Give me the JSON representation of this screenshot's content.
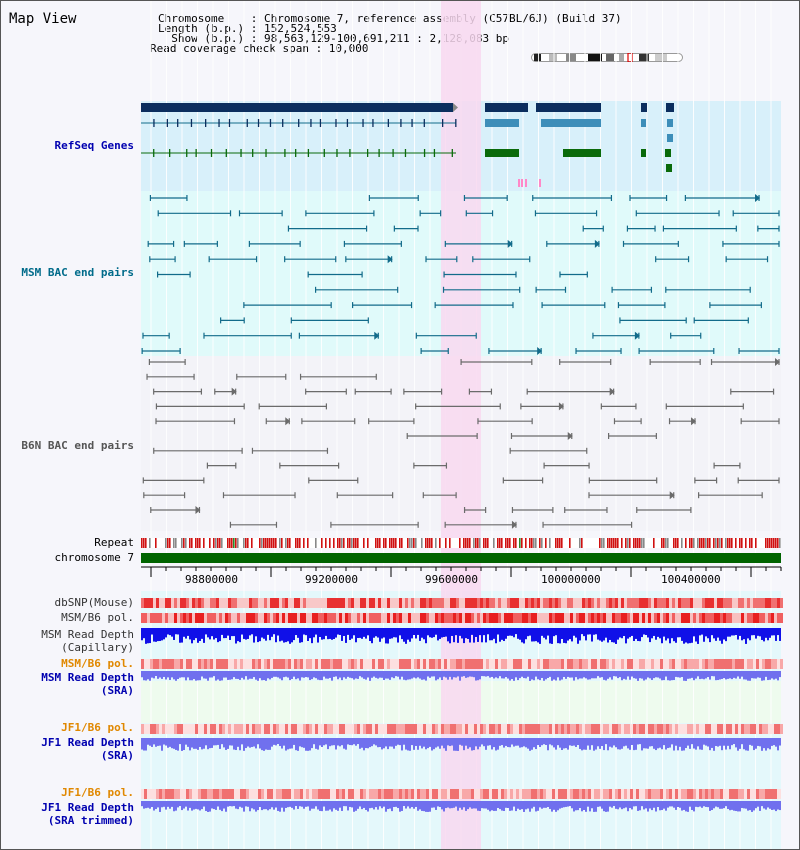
{
  "header": {
    "view_title": "Map View",
    "chromosome_line": "Chromosome    : Chromosome 7, reference assembly (C57BL/6J) (Build 37)",
    "length_line": "Length (b.p.) : 152,524,553",
    "show_line": "  Show (b.p.) : 98,563,129-100,691,211 : 2,128,083 bp",
    "coverage_line": "Read coverage check span : 10,000"
  },
  "colors": {
    "background": "#f6f6fb",
    "refseq_band": "#d8f0fa",
    "bac_band": "#e0fafa",
    "highlight": "#f8d8f0",
    "refseq_dark": "#0b2e5e",
    "refseq_mid": "#3d8eb9",
    "refseq_green": "#0a6a0a",
    "msm_bac": "#126b8a",
    "b6n_bac": "#6b6b6b",
    "repeat_red": "#d01010",
    "chrom_green": "#006400",
    "snp_red": "#ee3b3b",
    "capillary_blue": "#1010e8",
    "sra_blue": "#7070ee",
    "sra_green_bg": "#eefbee",
    "label_blue": "#0000b0",
    "label_teal": "#006b8a",
    "label_orange": "#e08800"
  },
  "tracks": {
    "refseq_genes": "RefSeq Genes",
    "msm_bac": "MSM BAC end pairs",
    "b6n_bac": "B6N BAC end pairs",
    "repeat": "Repeat",
    "chromosome": "chromosome 7",
    "dbsnp": "dbSNP(Mouse)",
    "msm_b6_pol": "MSM/B6 pol.",
    "msm_read_depth_cap": "MSM Read Depth\n(Capillary)",
    "msm_b6_pol_2": "MSM/B6 pol.",
    "msm_read_depth_sra": "MSM Read Depth\n(SRA)",
    "jf1_b6_pol": "JF1/B6 pol.",
    "jf1_read_depth_sra": "JF1 Read Depth\n(SRA)",
    "jf1_b6_pol_2": "JF1/B6 pol.",
    "jf1_read_depth_trimmed": "JF1 Read Depth\n(SRA trimmed)"
  },
  "axis": {
    "ticks": [
      "98800000",
      "99200000",
      "99600000",
      "100000000",
      "100400000"
    ]
  }
}
